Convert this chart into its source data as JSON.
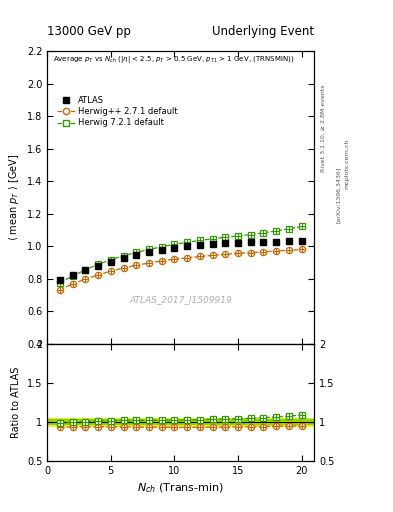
{
  "title_left": "13000 GeV pp",
  "title_right": "Underlying Event",
  "ylabel_main": "⟨ mean p_{T} ⟩ [GeV]",
  "ylabel_ratio": "Ratio to ATLAS",
  "xlabel": "N_{ch} (Trans-min)",
  "watermark": "ATLAS_2017_I1509919",
  "right_label1": "Rivet 3.1.10, ≥ 2.8M events",
  "right_label2": "[arXiv:1306.3436]",
  "right_label3": "mcplots.cern.ch",
  "atlas_x": [
    1,
    2,
    3,
    4,
    5,
    6,
    7,
    8,
    9,
    10,
    11,
    12,
    13,
    14,
    15,
    16,
    17,
    18,
    19,
    20
  ],
  "atlas_y": [
    0.79,
    0.822,
    0.853,
    0.878,
    0.903,
    0.925,
    0.945,
    0.963,
    0.978,
    0.99,
    1.0,
    1.007,
    1.013,
    1.018,
    1.022,
    1.025,
    1.027,
    1.028,
    1.031,
    1.033
  ],
  "atlas_yerr": [
    0.008,
    0.008,
    0.007,
    0.007,
    0.007,
    0.007,
    0.007,
    0.007,
    0.007,
    0.007,
    0.007,
    0.007,
    0.007,
    0.007,
    0.007,
    0.008,
    0.008,
    0.009,
    0.009,
    0.01
  ],
  "hpp_x": [
    1,
    2,
    3,
    4,
    5,
    6,
    7,
    8,
    9,
    10,
    11,
    12,
    13,
    14,
    15,
    16,
    17,
    18,
    19,
    20
  ],
  "hpp_y": [
    0.733,
    0.769,
    0.798,
    0.824,
    0.847,
    0.867,
    0.883,
    0.897,
    0.91,
    0.92,
    0.929,
    0.937,
    0.944,
    0.95,
    0.956,
    0.961,
    0.966,
    0.971,
    0.975,
    0.98
  ],
  "h7_x": [
    1,
    2,
    3,
    4,
    5,
    6,
    7,
    8,
    9,
    10,
    11,
    12,
    13,
    14,
    15,
    16,
    17,
    18,
    19,
    20
  ],
  "h7_y": [
    0.776,
    0.817,
    0.855,
    0.889,
    0.917,
    0.942,
    0.962,
    0.98,
    0.997,
    1.012,
    1.024,
    1.036,
    1.046,
    1.055,
    1.063,
    1.072,
    1.083,
    1.094,
    1.108,
    1.122
  ],
  "ylim_main": [
    0.4,
    2.2
  ],
  "ylim_ratio": [
    0.5,
    2.0
  ],
  "xlim": [
    0,
    21
  ],
  "yticks_main": [
    0.4,
    0.6,
    0.8,
    1.0,
    1.2,
    1.4,
    1.6,
    1.8,
    2.0,
    2.2
  ],
  "yticks_ratio": [
    0.5,
    1.0,
    1.5,
    2.0
  ],
  "xticks": [
    0,
    5,
    10,
    15,
    20
  ],
  "atlas_color": "#000000",
  "hpp_color": "#cc6600",
  "h7_color": "#339900",
  "band_green": "#88cc00",
  "band_yellow": "#eeee00",
  "ratio_hpp_y": [
    0.928,
    0.936,
    0.935,
    0.938,
    0.938,
    0.937,
    0.932,
    0.931,
    0.931,
    0.929,
    0.929,
    0.93,
    0.932,
    0.932,
    0.935,
    0.937,
    0.939,
    0.944,
    0.945,
    0.949
  ],
  "ratio_h7_y": [
    0.983,
    0.994,
    1.002,
    1.013,
    1.016,
    1.018,
    1.018,
    1.018,
    1.019,
    1.022,
    1.024,
    1.029,
    1.033,
    1.036,
    1.04,
    1.046,
    1.054,
    1.063,
    1.074,
    1.086
  ]
}
